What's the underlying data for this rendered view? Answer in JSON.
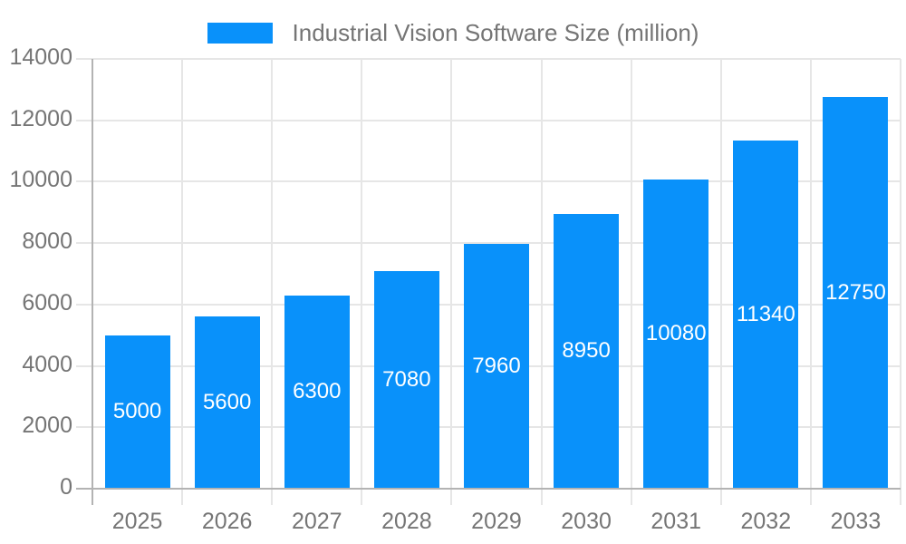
{
  "chart_data": {
    "type": "bar",
    "title": "",
    "xlabel": "",
    "ylabel": "",
    "legend_label": "Industrial Vision Software Size (million)",
    "legend_position": "top",
    "categories": [
      "2025",
      "2026",
      "2027",
      "2028",
      "2029",
      "2030",
      "2031",
      "2032",
      "2033"
    ],
    "values": [
      5000,
      5600,
      6300,
      7080,
      7960,
      8950,
      10080,
      11340,
      12750
    ],
    "bar_labels": [
      "5000",
      "5600",
      "6300",
      "7080",
      "7960",
      "8950",
      "10080",
      "11340",
      "12750"
    ],
    "ylim": [
      0,
      14000
    ],
    "ytick_step": 2000,
    "ytick_labels": [
      "0",
      "2000",
      "4000",
      "6000",
      "8000",
      "10000",
      "12000",
      "14000"
    ],
    "grid": true,
    "colors": {
      "bar": "#0991fa",
      "bar_label_text": "#ffffff",
      "grid_line": "#e6e6e6",
      "axis_line": "#b3b3b3",
      "tick_label_text": "#757575",
      "legend_text": "#757575"
    }
  }
}
